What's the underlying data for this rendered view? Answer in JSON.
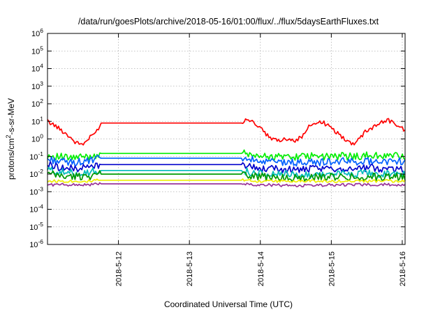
{
  "chart_data": {
    "type": "line",
    "title": "/data/run/goesPlots/archive/2018-05-16/01:00/flux/../flux/5daysEarthFluxes.txt",
    "xlabel": "Coordinated Universal Time (UTC)",
    "ylabel_parts": {
      "pre": "protons/cm",
      "sup": "2",
      "post": "-s-sr-MeV"
    },
    "x_unit": "day",
    "x_ticks": [
      {
        "x": 12,
        "label": "2018-5-12"
      },
      {
        "x": 13,
        "label": "2018-5-13"
      },
      {
        "x": 14,
        "label": "2018-5-14"
      },
      {
        "x": 15,
        "label": "2018-5-15"
      },
      {
        "x": 16,
        "label": "2018-5-16"
      }
    ],
    "xlim": [
      11.0,
      16.04
    ],
    "y_scale": "log",
    "ylim": [
      1e-06,
      1000000.0
    ],
    "y_ticks": [
      {
        "value": 1e-06,
        "base": "10",
        "exp": "-6"
      },
      {
        "value": 1e-05,
        "base": "10",
        "exp": "-5"
      },
      {
        "value": 0.0001,
        "base": "10",
        "exp": "-4"
      },
      {
        "value": 0.001,
        "base": "10",
        "exp": "-3"
      },
      {
        "value": 0.01,
        "base": "10",
        "exp": "-2"
      },
      {
        "value": 0.1,
        "base": "10",
        "exp": "-1"
      },
      {
        "value": 1.0,
        "base": "10",
        "exp": "0"
      },
      {
        "value": 10.0,
        "base": "10",
        "exp": "1"
      },
      {
        "value": 100.0,
        "base": "10",
        "exp": "2"
      },
      {
        "value": 1000.0,
        "base": "10",
        "exp": "3"
      },
      {
        "value": 10000.0,
        "base": "10",
        "exp": "4"
      },
      {
        "value": 100000.0,
        "base": "10",
        "exp": "5"
      },
      {
        "value": 1000000.0,
        "base": "10",
        "exp": "6"
      }
    ],
    "grid": true,
    "legend": "none",
    "data_gap": [
      11.75,
      13.75
    ],
    "series": [
      {
        "color": "#ff0000",
        "x": [
          11.0,
          11.1,
          11.2,
          11.3,
          11.4,
          11.5,
          11.6,
          11.7,
          11.75,
          13.75,
          13.8,
          13.9,
          14.0,
          14.1,
          14.2,
          14.3,
          14.4,
          14.5,
          14.6,
          14.7,
          14.8,
          14.9,
          15.0,
          15.1,
          15.2,
          15.3,
          15.4,
          15.5,
          15.6,
          15.7,
          15.8,
          15.9,
          16.0,
          16.04
        ],
        "values": [
          10,
          6,
          3,
          1.5,
          0.6,
          0.5,
          1.2,
          3,
          8,
          8,
          15,
          9,
          4,
          1.5,
          0.8,
          0.9,
          1.1,
          0.8,
          1.5,
          6,
          9,
          8,
          4,
          2,
          0.9,
          0.5,
          1.2,
          3,
          5,
          9,
          12,
          7,
          4,
          3
        ]
      },
      {
        "color": "#00ee00",
        "x": [
          11.0,
          11.3,
          11.6,
          11.75,
          13.75,
          14.0,
          14.5,
          15.0,
          15.5,
          16.0,
          16.04
        ],
        "values": [
          0.12,
          0.08,
          0.1,
          0.15,
          0.15,
          0.1,
          0.1,
          0.1,
          0.11,
          0.11,
          0.09
        ]
      },
      {
        "color": "#0060ff",
        "x": [
          11.0,
          11.3,
          11.6,
          11.75,
          13.75,
          14.0,
          14.5,
          15.0,
          15.5,
          16.0,
          16.04
        ],
        "values": [
          0.07,
          0.045,
          0.055,
          0.08,
          0.08,
          0.05,
          0.045,
          0.05,
          0.055,
          0.055,
          0.045
        ]
      },
      {
        "color": "#0000cc",
        "x": [
          11.0,
          11.3,
          11.6,
          11.75,
          13.75,
          14.0,
          14.5,
          15.0,
          15.5,
          16.0,
          16.04
        ],
        "values": [
          0.035,
          0.02,
          0.025,
          0.035,
          0.035,
          0.02,
          0.018,
          0.02,
          0.022,
          0.02,
          0.018
        ]
      },
      {
        "color": "#00bbbb",
        "x": [
          11.0,
          11.3,
          11.6,
          11.75,
          13.75,
          14.0,
          14.5,
          15.0,
          15.5,
          16.0,
          16.04
        ],
        "values": [
          0.018,
          0.011,
          0.013,
          0.016,
          0.016,
          0.01,
          0.009,
          0.01,
          0.011,
          0.01,
          0.009
        ]
      },
      {
        "color": "#009900",
        "x": [
          11.0,
          11.3,
          11.6,
          11.75,
          13.75,
          14.0,
          14.5,
          15.0,
          15.5,
          16.0,
          16.04
        ],
        "values": [
          0.01,
          0.007,
          0.008,
          0.01,
          0.01,
          0.007,
          0.006,
          0.007,
          0.007,
          0.007,
          0.006
        ]
      },
      {
        "color": "#eeee00",
        "x": [
          11.0,
          11.3,
          11.6,
          11.75,
          13.75,
          14.0,
          14.5,
          15.0,
          15.5,
          16.0,
          16.04
        ],
        "values": [
          0.004,
          0.004,
          0.004,
          0.0045,
          0.0045,
          0.004,
          0.004,
          0.004,
          0.004,
          0.004,
          0.004
        ]
      },
      {
        "color": "#993399",
        "x": [
          11.0,
          11.3,
          11.6,
          11.75,
          13.75,
          14.0,
          14.5,
          15.0,
          15.5,
          16.0,
          16.04
        ],
        "values": [
          0.0025,
          0.0025,
          0.0025,
          0.0028,
          0.0028,
          0.0025,
          0.0022,
          0.0024,
          0.0025,
          0.0025,
          0.0023
        ]
      }
    ]
  }
}
